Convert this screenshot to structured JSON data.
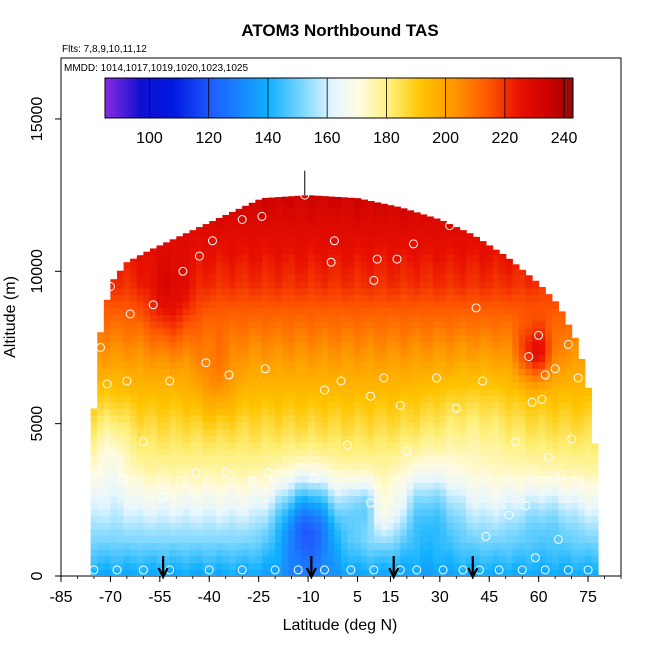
{
  "chart_data": {
    "type": "heatmap",
    "title": "ATOM3 Northbound TAS",
    "flights_label": "Flts: 7,8,9,10,11,12",
    "dates_label": "MMDD: 1014,1017,1019,1020,1023,1025",
    "xlabel": "Latitude (deg N)",
    "ylabel": "Altitude (m)",
    "xlim": [
      -85,
      85
    ],
    "ylim": [
      0,
      17000
    ],
    "x_ticks": [
      -85,
      -70,
      -55,
      -40,
      -25,
      -10,
      5,
      15,
      30,
      45,
      60,
      75
    ],
    "y_ticks": [
      0,
      5000,
      10000,
      15000
    ],
    "colorbar": {
      "range": [
        85,
        243
      ],
      "ticks": [
        100,
        120,
        140,
        160,
        180,
        200,
        220,
        240
      ],
      "stops": [
        {
          "v": 85,
          "c": "#8a2be2"
        },
        {
          "v": 97,
          "c": "#1010d0"
        },
        {
          "v": 108,
          "c": "#0018e0"
        },
        {
          "v": 122,
          "c": "#2060ff"
        },
        {
          "v": 140,
          "c": "#10b0ff"
        },
        {
          "v": 152,
          "c": "#7fd8ff"
        },
        {
          "v": 162,
          "c": "#e6f6ff"
        },
        {
          "v": 171,
          "c": "#fffbe0"
        },
        {
          "v": 181,
          "c": "#fff07a"
        },
        {
          "v": 192,
          "c": "#ffc400"
        },
        {
          "v": 203,
          "c": "#ff9600"
        },
        {
          "v": 214,
          "c": "#ff5a00"
        },
        {
          "v": 225,
          "c": "#e81000"
        },
        {
          "v": 236,
          "c": "#c80000"
        },
        {
          "v": 243,
          "c": "#8e0c0c"
        }
      ]
    },
    "envelope": [
      {
        "lat": -75,
        "top": 5500
      },
      {
        "lat": -73,
        "top": 8000
      },
      {
        "lat": -70,
        "top": 9600
      },
      {
        "lat": -65,
        "top": 10300
      },
      {
        "lat": -58,
        "top": 10700
      },
      {
        "lat": -50,
        "top": 11100
      },
      {
        "lat": -42,
        "top": 11500
      },
      {
        "lat": -32,
        "top": 12000
      },
      {
        "lat": -24,
        "top": 12400
      },
      {
        "lat": -10,
        "top": 12500
      },
      {
        "lat": 5,
        "top": 12400
      },
      {
        "lat": 18,
        "top": 12100
      },
      {
        "lat": 30,
        "top": 11700
      },
      {
        "lat": 40,
        "top": 11200
      },
      {
        "lat": 50,
        "top": 10500
      },
      {
        "lat": 60,
        "top": 9600
      },
      {
        "lat": 66,
        "top": 8900
      },
      {
        "lat": 72,
        "top": 7600
      },
      {
        "lat": 76,
        "top": 5700
      },
      {
        "lat": 78,
        "top": 3000
      }
    ],
    "anomalies": [
      {
        "lat": -10,
        "alt": 1700,
        "slat": 9,
        "salt": 1500,
        "amp": -35
      },
      {
        "lat": 7,
        "alt": 2300,
        "slat": 5,
        "salt": 900,
        "amp": -22
      },
      {
        "lat": 12,
        "alt": 2100,
        "slat": 8,
        "salt": 1000,
        "amp": 14
      },
      {
        "lat": 26,
        "alt": 2200,
        "slat": 10,
        "salt": 1500,
        "amp": -16
      },
      {
        "lat": 62,
        "alt": 2000,
        "slat": 10,
        "salt": 1200,
        "amp": -8
      },
      {
        "lat": 59,
        "alt": 7300,
        "slat": 5,
        "salt": 900,
        "amp": 24
      },
      {
        "lat": -52,
        "alt": 9000,
        "slat": 7,
        "salt": 1500,
        "amp": 12
      },
      {
        "lat": -38,
        "alt": 6500,
        "slat": 6,
        "salt": 1300,
        "amp": 9
      },
      {
        "lat": -70,
        "alt": 4000,
        "slat": 6,
        "salt": 1800,
        "amp": -10
      },
      {
        "lat": 40,
        "alt": 5000,
        "slat": 15,
        "salt": 2200,
        "amp": -6
      }
    ],
    "points": [
      {
        "lat": -75,
        "alt": 200
      },
      {
        "lat": -68,
        "alt": 200
      },
      {
        "lat": -60,
        "alt": 200
      },
      {
        "lat": -52,
        "alt": 200
      },
      {
        "lat": -40,
        "alt": 200
      },
      {
        "lat": -30,
        "alt": 200
      },
      {
        "lat": -20,
        "alt": 200
      },
      {
        "lat": -13,
        "alt": 200
      },
      {
        "lat": -5,
        "alt": 200
      },
      {
        "lat": 3,
        "alt": 200
      },
      {
        "lat": 10,
        "alt": 200
      },
      {
        "lat": 18,
        "alt": 200
      },
      {
        "lat": 23,
        "alt": 200
      },
      {
        "lat": 31,
        "alt": 200
      },
      {
        "lat": 37,
        "alt": 200
      },
      {
        "lat": 42,
        "alt": 200
      },
      {
        "lat": 48,
        "alt": 200
      },
      {
        "lat": 55,
        "alt": 200
      },
      {
        "lat": 62,
        "alt": 200
      },
      {
        "lat": 69,
        "alt": 200
      },
      {
        "lat": 75,
        "alt": 200
      },
      {
        "lat": -74,
        "alt": 3400
      },
      {
        "lat": -73,
        "alt": 7500
      },
      {
        "lat": -71,
        "alt": 6300
      },
      {
        "lat": -70,
        "alt": 9500
      },
      {
        "lat": -66,
        "alt": 3200
      },
      {
        "lat": -65,
        "alt": 6400
      },
      {
        "lat": -64,
        "alt": 8600
      },
      {
        "lat": -63,
        "alt": 10600
      },
      {
        "lat": -60,
        "alt": 4400
      },
      {
        "lat": -57,
        "alt": 8900
      },
      {
        "lat": -54,
        "alt": 2600
      },
      {
        "lat": -52,
        "alt": 6400
      },
      {
        "lat": -48,
        "alt": 10000
      },
      {
        "lat": -44,
        "alt": 3400
      },
      {
        "lat": -43,
        "alt": 10500
      },
      {
        "lat": -41,
        "alt": 7000
      },
      {
        "lat": -39,
        "alt": 11000
      },
      {
        "lat": -35,
        "alt": 3400
      },
      {
        "lat": -34,
        "alt": 6600
      },
      {
        "lat": -30,
        "alt": 11700
      },
      {
        "lat": -27,
        "alt": 3100
      },
      {
        "lat": -24,
        "alt": 11800
      },
      {
        "lat": -23,
        "alt": 6800
      },
      {
        "lat": -22,
        "alt": 3400
      },
      {
        "lat": -11,
        "alt": 12500
      },
      {
        "lat": -8,
        "alt": 3200
      },
      {
        "lat": -5,
        "alt": 6100
      },
      {
        "lat": -2,
        "alt": 11000
      },
      {
        "lat": -3,
        "alt": 10300
      },
      {
        "lat": 0,
        "alt": 6400
      },
      {
        "lat": 2,
        "alt": 4300
      },
      {
        "lat": 9,
        "alt": 2400
      },
      {
        "lat": 9,
        "alt": 5900
      },
      {
        "lat": 10,
        "alt": 9700
      },
      {
        "lat": 11,
        "alt": 10400
      },
      {
        "lat": 13,
        "alt": 6500
      },
      {
        "lat": 17,
        "alt": 10400
      },
      {
        "lat": 18,
        "alt": 5600
      },
      {
        "lat": 20,
        "alt": 4100
      },
      {
        "lat": 22,
        "alt": 10900
      },
      {
        "lat": 29,
        "alt": 6500
      },
      {
        "lat": 33,
        "alt": 11500
      },
      {
        "lat": 35,
        "alt": 5500
      },
      {
        "lat": 41,
        "alt": 8800
      },
      {
        "lat": 43,
        "alt": 6400
      },
      {
        "lat": 44,
        "alt": 1300
      },
      {
        "lat": 51,
        "alt": 2000
      },
      {
        "lat": 53,
        "alt": 4400
      },
      {
        "lat": 56,
        "alt": 2300
      },
      {
        "lat": 57,
        "alt": 7200
      },
      {
        "lat": 58,
        "alt": 5700
      },
      {
        "lat": 59,
        "alt": 600
      },
      {
        "lat": 60,
        "alt": 7900
      },
      {
        "lat": 61,
        "alt": 5800
      },
      {
        "lat": 62,
        "alt": 6600
      },
      {
        "lat": 63,
        "alt": 3900
      },
      {
        "lat": 65,
        "alt": 6800
      },
      {
        "lat": 66,
        "alt": 1200
      },
      {
        "lat": 67,
        "alt": 3300
      },
      {
        "lat": 69,
        "alt": 7600
      },
      {
        "lat": 70,
        "alt": 4500
      },
      {
        "lat": 72,
        "alt": 6500
      },
      {
        "lat": 74,
        "alt": 3000
      }
    ],
    "arrows": [
      -54,
      -9,
      16,
      40
    ]
  }
}
